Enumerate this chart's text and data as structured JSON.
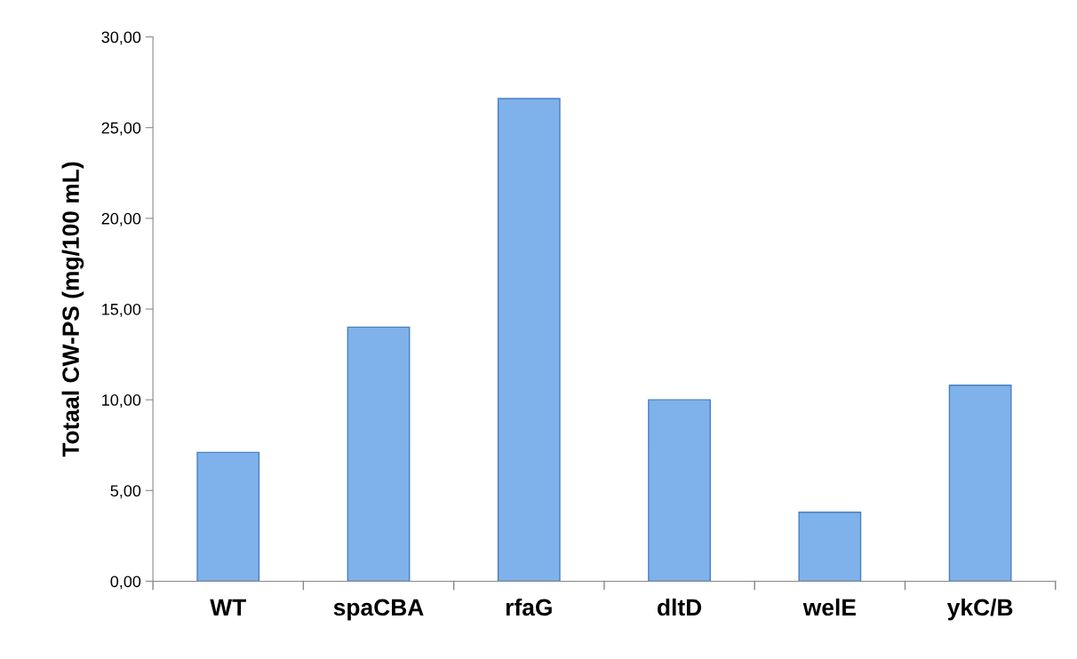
{
  "chart_data": {
    "type": "bar",
    "ylabel": "Totaal CW-PS (mg/100 mL)",
    "categories": [
      "WT",
      "spaCBA",
      "rfaG",
      "dltD",
      "welE",
      "ykC/B"
    ],
    "values": [
      7.1,
      14.0,
      26.6,
      10.0,
      3.8,
      10.8
    ],
    "color": "#7fb2ea",
    "ylim": [
      0,
      30
    ],
    "yticks": [
      {
        "value": 0,
        "label": "0,00"
      },
      {
        "value": 5,
        "label": "5,00"
      },
      {
        "value": 10,
        "label": "10,00"
      },
      {
        "value": 15,
        "label": "15,00"
      },
      {
        "value": 20,
        "label": "20,00"
      },
      {
        "value": 25,
        "label": "25,00"
      },
      {
        "value": 30,
        "label": "30,00"
      }
    ],
    "grid": false,
    "legend": false
  }
}
